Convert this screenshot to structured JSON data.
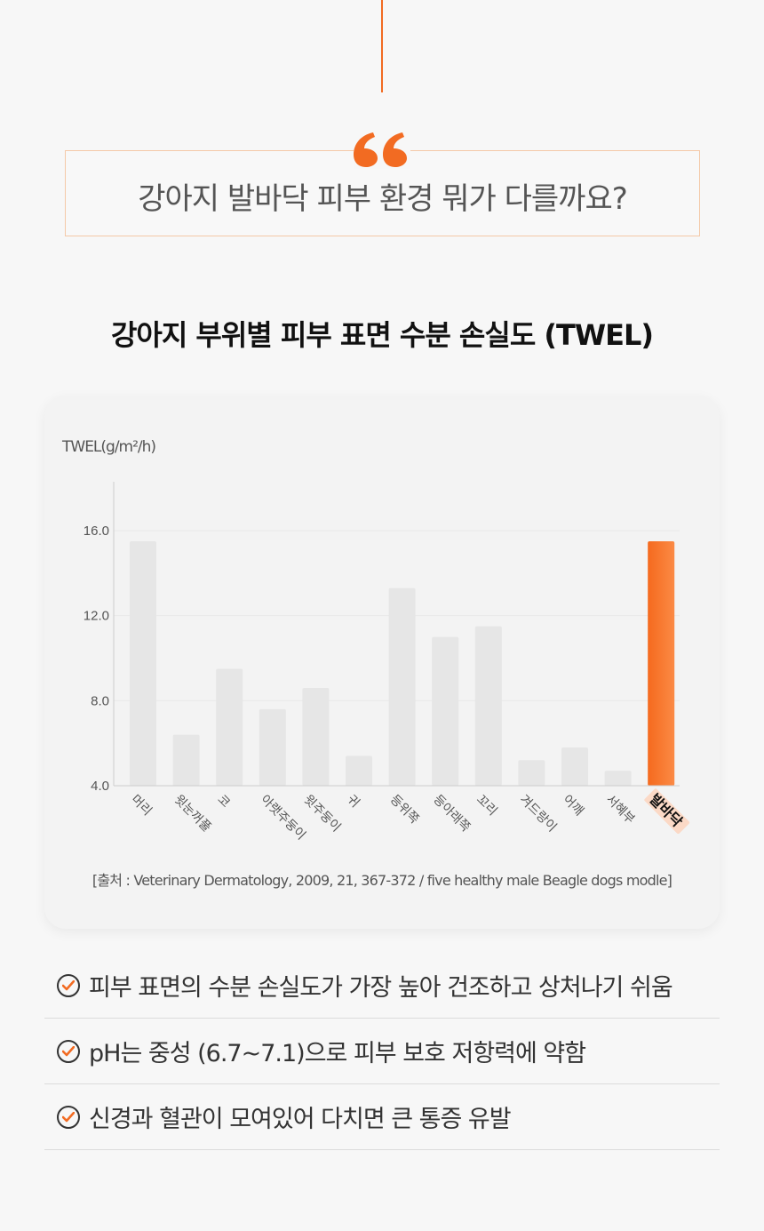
{
  "quote": {
    "text": "강아지 발바닥 피부 환경 뭐가 다를까요?"
  },
  "section_title": "강아지 부위별 피부 표면 수분 손실도 (TWEL)",
  "chart_data": {
    "type": "bar",
    "title": "",
    "ylabel": "TWEL(g/m²/h)",
    "xlabel": "",
    "ylim": [
      4.0,
      18.0
    ],
    "yticks": [
      "16.0",
      "12.0",
      "8.0",
      "4.0"
    ],
    "ytick_values": [
      16,
      12,
      8,
      4
    ],
    "categories": [
      "머리",
      "윗눈꺼풀",
      "코",
      "아랫주둥이",
      "윗주둥이",
      "귀",
      "등위쪽",
      "등아래쪽",
      "꼬리",
      "겨드랑이",
      "어깨",
      "서혜부",
      "발바닥"
    ],
    "values": [
      15.5,
      6.4,
      9.5,
      7.6,
      8.6,
      5.4,
      13.3,
      11.0,
      11.5,
      5.2,
      5.8,
      4.7,
      15.5
    ],
    "highlight": "발바닥",
    "colors": {
      "bar": "#e6e6e6",
      "highlight": "#f7722a",
      "axis": "#cccccc"
    },
    "source": "[출처 : Veterinary Dermatology, 2009, 21, 367-372 / five healthy male Beagle dogs modle]"
  },
  "benefits": [
    {
      "icon": "check-circle-icon",
      "text": "피부 표면의 수분 손실도가 가장 높아 건조하고 상처나기 쉬움"
    },
    {
      "icon": "check-circle-icon",
      "text": "pH는 중성 (6.7~7.1)으로 피부 보호 저항력에 약함"
    },
    {
      "icon": "check-circle-icon",
      "text": "신경과 혈관이 모여있어 다치면 큰 통증 유발"
    }
  ],
  "accent_color": "#f26b22"
}
